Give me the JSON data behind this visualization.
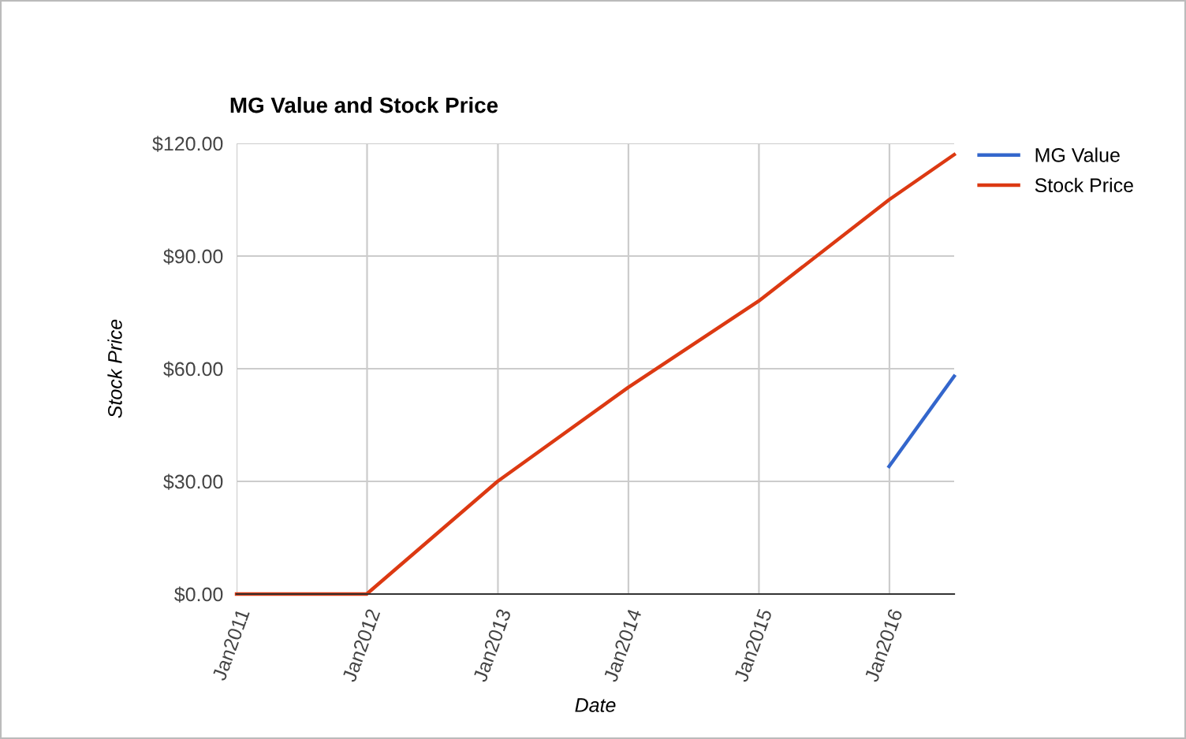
{
  "chart_data": {
    "type": "line",
    "title": "MG Value and Stock Price",
    "xlabel": "Date",
    "ylabel": "Stock Price",
    "series": [
      {
        "name": "MG Value",
        "color": "#3366cc",
        "x": [
          "2015-12-31",
          "2016-06-30"
        ],
        "values": [
          34,
          58
        ]
      },
      {
        "name": "Stock Price",
        "color": "#dc3912",
        "x": [
          "2011-01-01",
          "2011-12-31",
          "2012-12-31",
          "2013-12-31",
          "2014-12-31",
          "2015-12-31",
          "2016-06-30"
        ],
        "values": [
          0,
          0,
          30,
          55,
          78,
          105,
          117
        ]
      }
    ],
    "xlim": [
      "2011-01-01",
      "2016-06-30"
    ],
    "xticks": [
      {
        "value": "2011-01-01",
        "label": "Jan2011"
      },
      {
        "value": "2012-01-01",
        "label": "Jan2012"
      },
      {
        "value": "2013-01-01",
        "label": "Jan2013"
      },
      {
        "value": "2014-01-01",
        "label": "Jan2014"
      },
      {
        "value": "2015-01-01",
        "label": "Jan2015"
      },
      {
        "value": "2016-01-01",
        "label": "Jan2016"
      }
    ],
    "ylim": [
      0,
      120
    ],
    "yticks": [
      {
        "value": 0,
        "label": "$0.00"
      },
      {
        "value": 30,
        "label": "$30.00"
      },
      {
        "value": 60,
        "label": "$60.00"
      },
      {
        "value": 90,
        "label": "$90.00"
      },
      {
        "value": 120,
        "label": "$120.00"
      }
    ],
    "grid": true,
    "legend": "top right",
    "marker": "none",
    "line_style": "solid"
  }
}
